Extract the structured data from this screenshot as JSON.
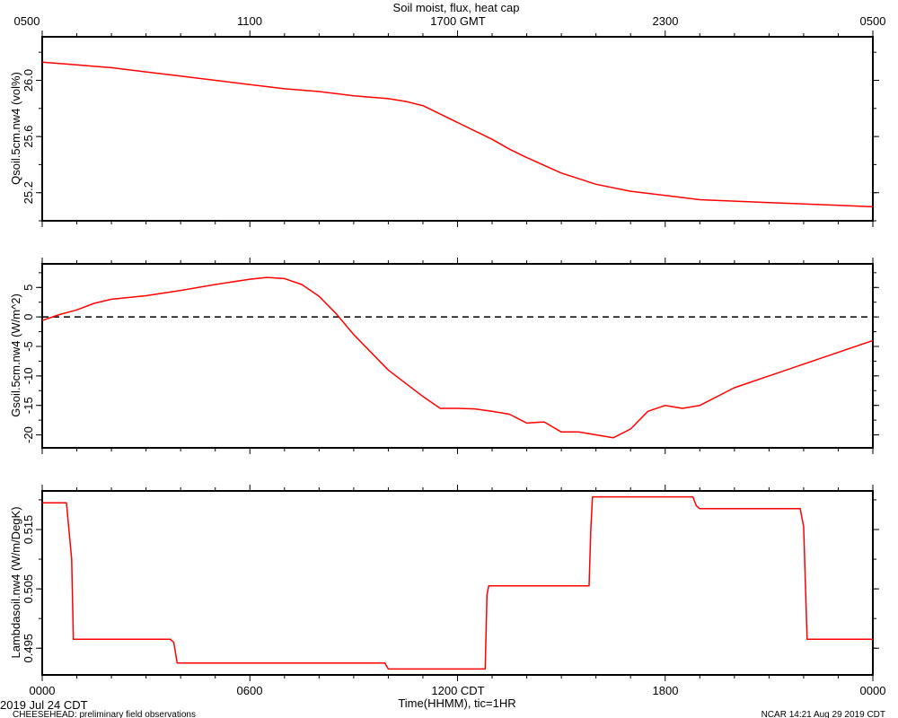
{
  "title": "Soil moist, flux, heat cap",
  "top_axis": {
    "ticks": [
      "0500",
      "1100",
      "1700 GMT",
      "2300",
      "0500"
    ]
  },
  "bottom_axis": {
    "ticks": [
      "0000",
      "0600",
      "1200 CDT",
      "1800",
      "0000"
    ],
    "label": "Time(HHMM), tic=1HR"
  },
  "footer": {
    "date": "2019 Jul 24 CDT",
    "project": "CHEESEHEAD: preliminary field observations",
    "credit": "NCAR 14:21 Aug 29 2019 CDT"
  },
  "colors": {
    "series": "#ff0000",
    "axis": "#000000",
    "zero_line": "#000000"
  },
  "chart_data": [
    {
      "type": "line",
      "ylabel": "Qsoil.5cm.nw4 (vol%)",
      "xlim": [
        0,
        24
      ],
      "ylim": [
        25.0,
        26.31
      ],
      "yticks": [
        25.2,
        25.6,
        26.0
      ],
      "ytick_labels": [
        "25.2",
        "25.6",
        "26.0"
      ],
      "series": [
        {
          "x": [
            0,
            0.5,
            1,
            1.5,
            2,
            3,
            4,
            5,
            6,
            7,
            8,
            9,
            10,
            10.5,
            11,
            12,
            13,
            13.5,
            14,
            15,
            16,
            17,
            18,
            19,
            20,
            21,
            22,
            23,
            24
          ],
          "y": [
            26.13,
            26.12,
            26.11,
            26.1,
            26.09,
            26.06,
            26.03,
            26.0,
            25.97,
            25.94,
            25.92,
            25.89,
            25.87,
            25.85,
            25.82,
            25.7,
            25.58,
            25.51,
            25.45,
            25.34,
            25.26,
            25.21,
            25.18,
            25.15,
            25.14,
            25.13,
            25.12,
            25.11,
            25.1
          ]
        }
      ]
    },
    {
      "type": "line",
      "ylabel": "Gsoil.5cm.nw4 (W/m^2)",
      "xlim": [
        0,
        24
      ],
      "ylim": [
        -22.2,
        9.0
      ],
      "yticks": [
        -20,
        -15,
        -10,
        -5,
        0,
        5
      ],
      "ytick_labels": [
        "-20",
        "-15",
        "-10",
        "-5",
        "0",
        "5"
      ],
      "zero_line": true,
      "series": [
        {
          "x": [
            0,
            0.5,
            1,
            1.5,
            2,
            3,
            4,
            5,
            6,
            6.5,
            7,
            7.5,
            8,
            8.5,
            9,
            10,
            11,
            11.5,
            12,
            12.5,
            13,
            13.5,
            14,
            14.5,
            15,
            15.5,
            16,
            16.5,
            17,
            17.5,
            18,
            18.5,
            19,
            20,
            21,
            22,
            23,
            24
          ],
          "y": [
            -0.6,
            0.4,
            1.2,
            2.3,
            3.0,
            3.6,
            4.5,
            5.5,
            6.4,
            6.7,
            6.5,
            5.5,
            3.5,
            0.5,
            -3.0,
            -9.0,
            -13.5,
            -15.5,
            -15.5,
            -15.6,
            -16.0,
            -16.5,
            -18.0,
            -17.8,
            -19.5,
            -19.5,
            -20.0,
            -20.5,
            -19.0,
            -16.0,
            -15.0,
            -15.5,
            -15.0,
            -12.0,
            -10.0,
            -8.0,
            -6.0,
            -4.0
          ]
        }
      ]
    },
    {
      "type": "line",
      "ylabel": "Lambdasoil.nw4 (W/m/DegK)",
      "xlim": [
        0,
        24
      ],
      "ylim": [
        0.4905,
        0.5215
      ],
      "yticks": [
        0.495,
        0.505,
        0.515
      ],
      "ytick_labels": [
        "0.495",
        "0.505",
        "0.515"
      ],
      "series": [
        {
          "x": [
            0,
            0.7,
            0.85,
            0.9,
            3.7,
            3.8,
            3.9,
            9.9,
            10.0,
            12.8,
            12.85,
            12.9,
            15.8,
            15.85,
            15.9,
            18.8,
            18.9,
            19.0,
            21.9,
            22.0,
            22.1,
            24
          ],
          "y": [
            0.5195,
            0.5195,
            0.51,
            0.4965,
            0.4965,
            0.496,
            0.4925,
            0.4925,
            0.4915,
            0.4915,
            0.504,
            0.5055,
            0.5055,
            0.515,
            0.5205,
            0.5205,
            0.519,
            0.5185,
            0.5185,
            0.5155,
            0.4965,
            0.4965
          ]
        }
      ]
    }
  ]
}
